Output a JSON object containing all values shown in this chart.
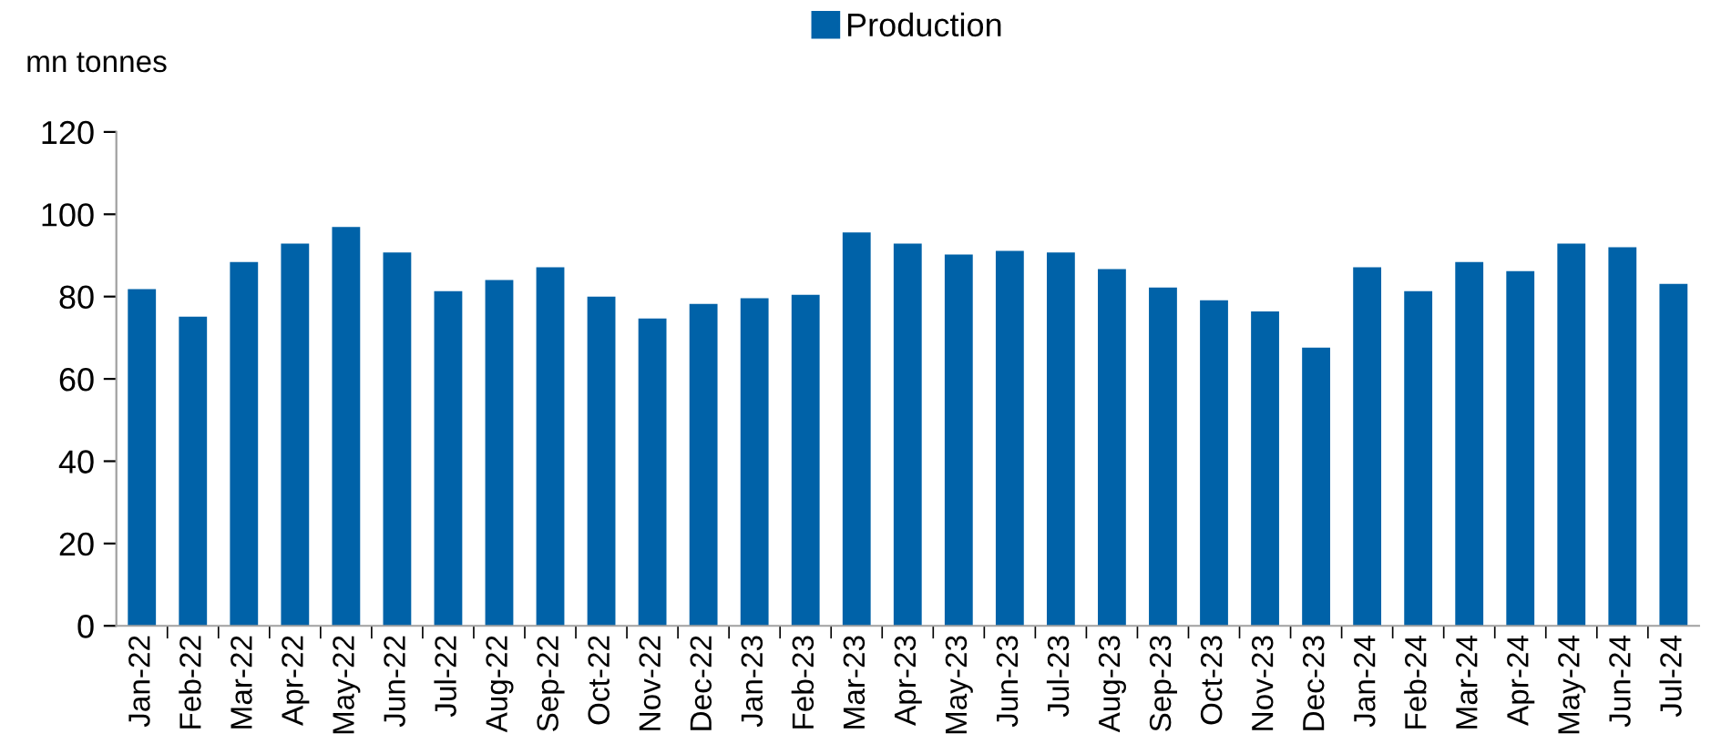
{
  "chart_data": {
    "type": "bar",
    "ylabel": "mn tonnes",
    "categories": [
      "Jan-22",
      "Feb-22",
      "Mar-22",
      "Apr-22",
      "May-22",
      "Jun-22",
      "Jul-22",
      "Aug-22",
      "Sep-22",
      "Oct-22",
      "Nov-22",
      "Dec-22",
      "Jan-23",
      "Feb-23",
      "Mar-23",
      "Apr-23",
      "May-23",
      "Jun-23",
      "Jul-23",
      "Aug-23",
      "Sep-23",
      "Oct-23",
      "Nov-23",
      "Dec-23",
      "Jan-24",
      "Feb-24",
      "Mar-24",
      "Apr-24",
      "May-24",
      "Jun-24",
      "Jul-24"
    ],
    "series": [
      {
        "name": "Production",
        "color": "#0062a8",
        "values": [
          81.8,
          75.1,
          88.4,
          92.9,
          96.9,
          90.7,
          81.3,
          84,
          87.1,
          80,
          74.7,
          78.2,
          79.6,
          80.4,
          95.6,
          92.9,
          90.2,
          91.1,
          90.7,
          86.7,
          82.2,
          79.1,
          76.4,
          67.6,
          87.1,
          81.3,
          88.4,
          86.2,
          92.9,
          92,
          83.1
        ]
      }
    ],
    "ylim": [
      0,
      120
    ],
    "yticks": [
      0,
      20,
      40,
      60,
      80,
      100,
      120
    ],
    "grid": false,
    "legend": "top"
  }
}
